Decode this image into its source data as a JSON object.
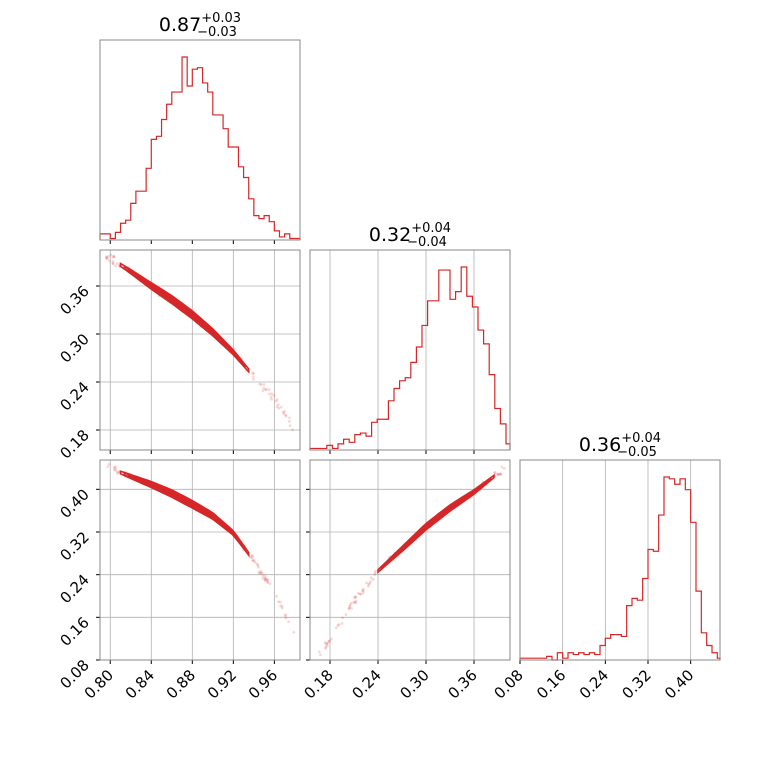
{
  "chart_data": {
    "type": "corner",
    "color": "#d62728",
    "grid": true,
    "parameters": [
      {
        "title": {
          "median": "0.87",
          "plus": "+0.03",
          "minus": "−0.03"
        },
        "range": [
          0.79,
          0.985
        ],
        "ticks": [
          "0.80",
          "0.84",
          "0.88",
          "0.92",
          "0.96"
        ]
      },
      {
        "title": {
          "median": "0.32",
          "plus": "+0.04",
          "minus": "−0.04"
        },
        "range": [
          0.155,
          0.405
        ],
        "ticks": [
          "0.18",
          "0.24",
          "0.30",
          "0.36"
        ]
      },
      {
        "title": {
          "median": "0.36",
          "plus": "+0.04",
          "minus": "−0.05"
        },
        "range": [
          0.08,
          0.455
        ],
        "ticks": [
          "0.08",
          "0.16",
          "0.24",
          "0.32",
          "0.40"
        ]
      }
    ],
    "histograms": [
      {
        "edges": [
          0.79,
          0.795,
          0.8,
          0.805,
          0.81,
          0.815,
          0.82,
          0.825,
          0.83,
          0.835,
          0.84,
          0.845,
          0.85,
          0.855,
          0.86,
          0.865,
          0.87,
          0.875,
          0.88,
          0.885,
          0.89,
          0.895,
          0.9,
          0.905,
          0.91,
          0.915,
          0.92,
          0.925,
          0.93,
          0.935,
          0.94,
          0.945,
          0.95,
          0.955,
          0.96,
          0.965,
          0.97,
          0.975,
          0.98,
          0.985
        ],
        "counts": [
          4,
          4,
          1,
          5,
          11,
          13,
          24,
          32,
          32,
          47,
          66,
          68,
          79,
          89,
          97,
          97,
          120,
          101,
          112,
          113,
          103,
          97,
          82,
          82,
          73,
          61,
          61,
          48,
          41,
          27,
          16,
          14,
          16,
          12,
          6,
          2,
          4,
          1,
          1
        ]
      },
      {
        "edges": [
          0.155,
          0.162,
          0.169,
          0.176,
          0.183,
          0.19,
          0.197,
          0.204,
          0.211,
          0.218,
          0.225,
          0.232,
          0.239,
          0.246,
          0.253,
          0.26,
          0.267,
          0.274,
          0.281,
          0.288,
          0.295,
          0.302,
          0.309,
          0.316,
          0.323,
          0.33,
          0.337,
          0.344,
          0.351,
          0.358,
          0.365,
          0.372,
          0.379,
          0.386,
          0.393,
          0.4,
          0.405
        ],
        "counts": [
          1,
          1,
          1,
          3,
          1,
          4,
          7,
          5,
          10,
          11,
          9,
          18,
          20,
          20,
          32,
          40,
          45,
          47,
          57,
          67,
          81,
          97,
          97,
          117,
          117,
          98,
          103,
          119,
          100,
          93,
          78,
          69,
          49,
          27,
          17,
          4
        ]
      },
      {
        "edges": [
          0.08,
          0.09,
          0.1,
          0.11,
          0.12,
          0.13,
          0.14,
          0.15,
          0.16,
          0.17,
          0.18,
          0.19,
          0.2,
          0.21,
          0.22,
          0.23,
          0.24,
          0.25,
          0.26,
          0.27,
          0.28,
          0.29,
          0.3,
          0.31,
          0.32,
          0.33,
          0.34,
          0.35,
          0.36,
          0.37,
          0.38,
          0.39,
          0.4,
          0.41,
          0.42,
          0.43,
          0.44,
          0.45,
          0.455
        ],
        "counts": [
          1,
          1,
          1,
          1,
          1,
          2,
          0,
          4,
          1,
          4,
          3,
          4,
          3,
          4,
          3,
          8,
          12,
          14,
          14,
          13,
          30,
          34,
          33,
          45,
          61,
          60,
          80,
          101,
          100,
          97,
          100,
          94,
          76,
          38,
          15,
          8,
          4,
          1
        ]
      }
    ],
    "pairs": [
      {
        "x_param": 0,
        "y_param": 1,
        "ridge": [
          [
            0.796,
            0.398
          ],
          [
            0.82,
            0.378
          ],
          [
            0.84,
            0.36
          ],
          [
            0.86,
            0.343
          ],
          [
            0.88,
            0.324
          ],
          [
            0.9,
            0.302
          ],
          [
            0.92,
            0.277
          ],
          [
            0.93,
            0.262
          ],
          [
            0.94,
            0.247
          ],
          [
            0.96,
            0.218
          ],
          [
            0.98,
            0.181
          ]
        ],
        "core": [
          0.81,
          0.935
        ],
        "width": 0.005
      },
      {
        "x_param": 0,
        "y_param": 2,
        "ridge": [
          [
            0.796,
            0.442
          ],
          [
            0.82,
            0.424
          ],
          [
            0.84,
            0.409
          ],
          [
            0.86,
            0.392
          ],
          [
            0.88,
            0.372
          ],
          [
            0.9,
            0.35
          ],
          [
            0.92,
            0.318
          ],
          [
            0.94,
            0.266
          ],
          [
            0.96,
            0.208
          ],
          [
            0.98,
            0.13
          ]
        ],
        "core": [
          0.81,
          0.935
        ],
        "width": 0.007
      },
      {
        "x_param": 1,
        "y_param": 2,
        "ridge": [
          [
            0.166,
            0.09
          ],
          [
            0.19,
            0.14
          ],
          [
            0.21,
            0.19
          ],
          [
            0.24,
            0.247
          ],
          [
            0.27,
            0.288
          ],
          [
            0.3,
            0.33
          ],
          [
            0.33,
            0.365
          ],
          [
            0.36,
            0.395
          ],
          [
            0.39,
            0.43
          ],
          [
            0.4,
            0.443
          ]
        ],
        "core": [
          0.24,
          0.385
        ],
        "width": 0.006
      }
    ]
  }
}
